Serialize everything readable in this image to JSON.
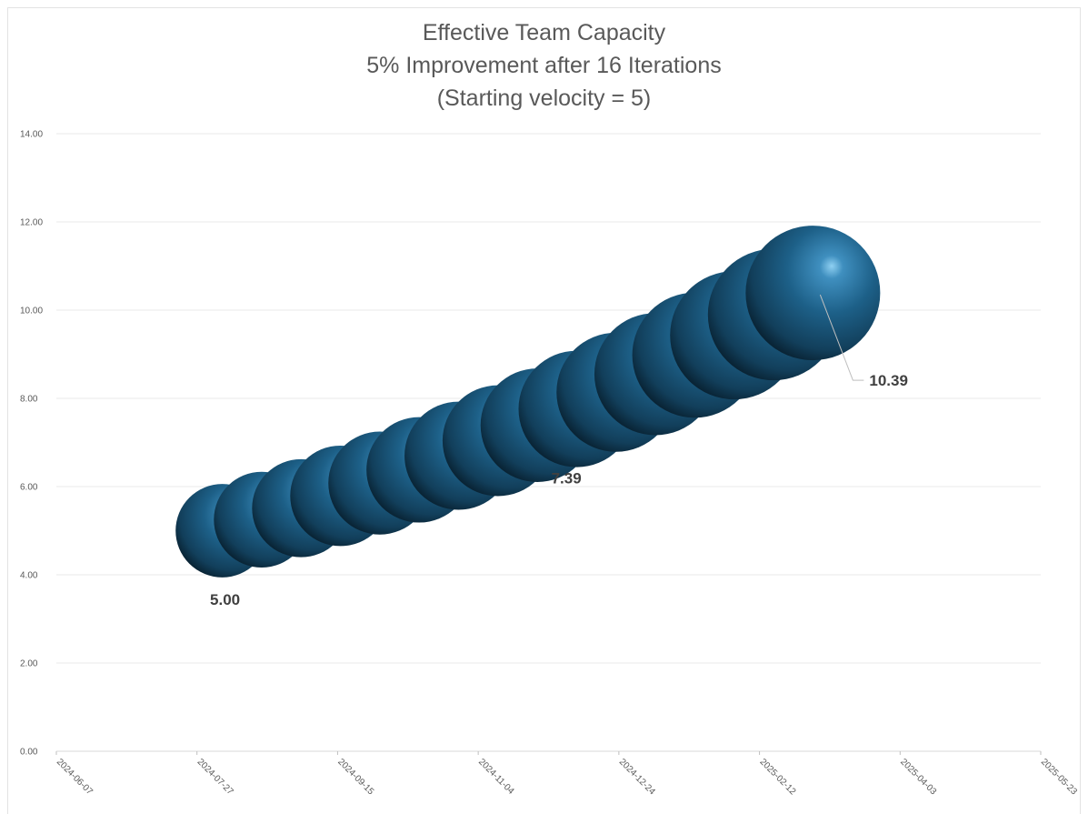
{
  "chart_data": {
    "type": "bubble",
    "title_lines": [
      "Effective Team Capacity",
      "5% Improvement after 16 Iterations",
      "(Starting velocity = 5)"
    ],
    "xlabel": "",
    "ylabel": "",
    "x_axis": {
      "type": "date",
      "min": "2024-06-07",
      "max": "2025-05-23",
      "tick_labels": [
        "2024-06-07",
        "2024-07-27",
        "2024-09-15",
        "2024-11-04",
        "2024-12-24",
        "2025-02-12",
        "2025-04-03",
        "2025-05-23"
      ]
    },
    "y_axis": {
      "min": 0,
      "max": 14,
      "tick_labels": [
        "0.00",
        "2.00",
        "4.00",
        "6.00",
        "8.00",
        "10.00",
        "12.00",
        "14.00"
      ]
    },
    "grid": true,
    "legend": "none",
    "bubble_color": "#1f5f86",
    "x": [
      "2024-08-05",
      "2024-08-19",
      "2024-09-02",
      "2024-09-16",
      "2024-09-30",
      "2024-10-14",
      "2024-10-28",
      "2024-11-11",
      "2024-11-25",
      "2024-12-09",
      "2024-12-23",
      "2025-01-06",
      "2025-01-20",
      "2025-02-03",
      "2025-02-17",
      "2025-03-03"
    ],
    "values": [
      5.0,
      5.25,
      5.51,
      5.79,
      6.08,
      6.38,
      6.7,
      7.04,
      7.39,
      7.76,
      8.14,
      8.55,
      8.98,
      9.43,
      9.9,
      10.39
    ],
    "bubble_sizes": [
      5.0,
      5.25,
      5.51,
      5.79,
      6.08,
      6.38,
      6.7,
      7.04,
      7.39,
      7.76,
      8.14,
      8.55,
      8.98,
      9.43,
      9.9,
      10.39
    ],
    "data_labels": [
      {
        "index": 0,
        "text": "5.00"
      },
      {
        "index": 8,
        "text": "7.39"
      },
      {
        "index": 15,
        "text": "10.39"
      }
    ]
  }
}
